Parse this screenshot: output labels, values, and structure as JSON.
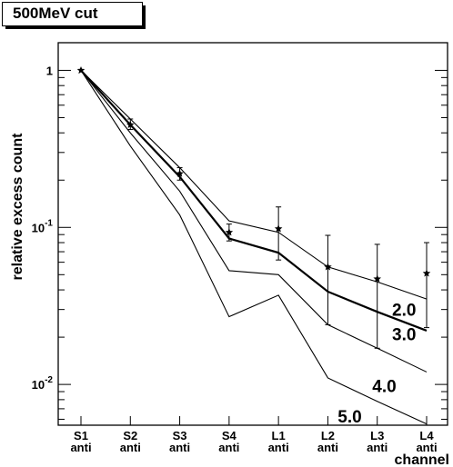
{
  "chart_data": {
    "type": "line",
    "title": "500MeV cut",
    "ylabel": "relative excess count",
    "xlabel": "channel",
    "y_scale": "log",
    "ylim": [
      0.0055,
      1.5
    ],
    "categories": [
      {
        "top": "S1",
        "bottom": "anti"
      },
      {
        "top": "S2",
        "bottom": "anti"
      },
      {
        "top": "S3",
        "bottom": "anti"
      },
      {
        "top": "S4",
        "bottom": "anti"
      },
      {
        "top": "L1",
        "bottom": "anti"
      },
      {
        "top": "L2",
        "bottom": "anti"
      },
      {
        "top": "L3",
        "bottom": "anti"
      },
      {
        "top": "L4",
        "bottom": "anti"
      }
    ],
    "y_ticks": [
      {
        "value": 1,
        "label": "1"
      },
      {
        "value": 0.1,
        "label": "10",
        "exp": "-1"
      },
      {
        "value": 0.01,
        "label": "10",
        "exp": "-2"
      }
    ],
    "series": [
      {
        "name": "",
        "style": "thin",
        "values": [
          1.0,
          0.49,
          0.24,
          0.11,
          0.093,
          0.056,
          0.045,
          0.035
        ]
      },
      {
        "name": "",
        "style": "thick",
        "values": [
          1.0,
          0.45,
          0.21,
          0.085,
          0.069,
          0.039,
          0.029,
          0.022
        ]
      },
      {
        "name": "",
        "style": "thin",
        "values": [
          1.0,
          0.4,
          0.17,
          0.053,
          0.05,
          0.024,
          0.017,
          0.012
        ]
      },
      {
        "name": "",
        "style": "thin",
        "values": [
          1.0,
          0.33,
          0.12,
          0.027,
          0.037,
          0.011,
          0.0078,
          0.0056
        ]
      }
    ],
    "curve_labels": [
      {
        "text": "2.0",
        "x_index": 6.3,
        "y": 0.03
      },
      {
        "text": "3.0",
        "x_index": 6.3,
        "y": 0.021
      },
      {
        "text": "4.0",
        "x_index": 5.9,
        "y": 0.0098
      },
      {
        "text": "5.0",
        "x_index": 5.2,
        "y": 0.0063
      }
    ],
    "measured": [
      {
        "x_index": 0,
        "y": 1.0,
        "err_low": 1.0,
        "err_high": 1.0
      },
      {
        "x_index": 1,
        "y": 0.45,
        "err_low": 0.42,
        "err_high": 0.49
      },
      {
        "x_index": 2,
        "y": 0.22,
        "err_low": 0.2,
        "err_high": 0.24
      },
      {
        "x_index": 3,
        "y": 0.093,
        "err_low": 0.082,
        "err_high": 0.105
      },
      {
        "x_index": 4,
        "y": 0.098,
        "err_low": 0.062,
        "err_high": 0.135
      },
      {
        "x_index": 5,
        "y": 0.056,
        "err_low": 0.024,
        "err_high": 0.089
      },
      {
        "x_index": 6,
        "y": 0.047,
        "err_low": 0.017,
        "err_high": 0.078
      },
      {
        "x_index": 7,
        "y": 0.051,
        "err_low": 0.023,
        "err_high": 0.08
      }
    ]
  }
}
